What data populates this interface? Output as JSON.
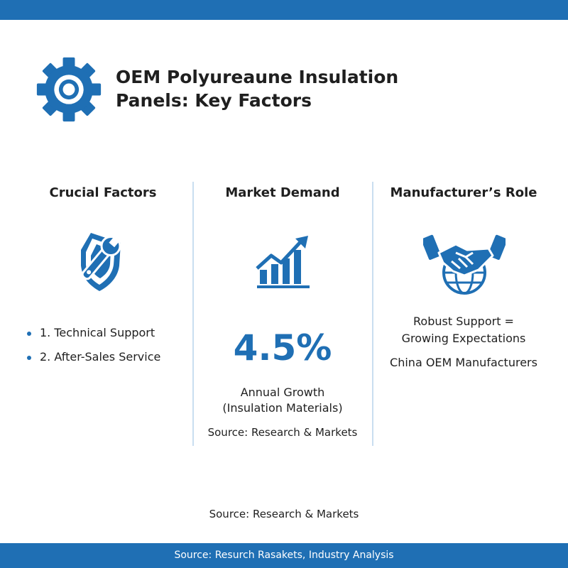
{
  "header": {
    "title_line1": "OEM Polyureaune Insulation",
    "title_line2": "Panels: Key Factors"
  },
  "columns": {
    "crucial": {
      "heading": "Crucial Factors",
      "items": [
        "1. Technical Support",
        "2. After-Sales Service"
      ]
    },
    "demand": {
      "heading": "Market Demand",
      "stat": "4.5%",
      "label_line1": "Annual Growth",
      "label_line2": "(Insulation Materials)",
      "source": "Source: Research & Markets"
    },
    "role": {
      "heading": "Manufacturer’s Role",
      "text_line1": "Robust Support =",
      "text_line2": "Growing Expectations",
      "subtext": "China OEM Manufacturers"
    }
  },
  "footer": {
    "source": "Source: Research & Markets",
    "bar_text": "Source: Resurch Rasakets, Industry Analysis"
  },
  "icons": {
    "logo": "gear-icon",
    "crucial": "wrench-shield-icon",
    "demand": "growth-chart-icon",
    "role": "handshake-globe-icon"
  },
  "colors": {
    "brand": "#1f6fb4",
    "divider": "#c9def0",
    "text": "#1f1f1f"
  }
}
